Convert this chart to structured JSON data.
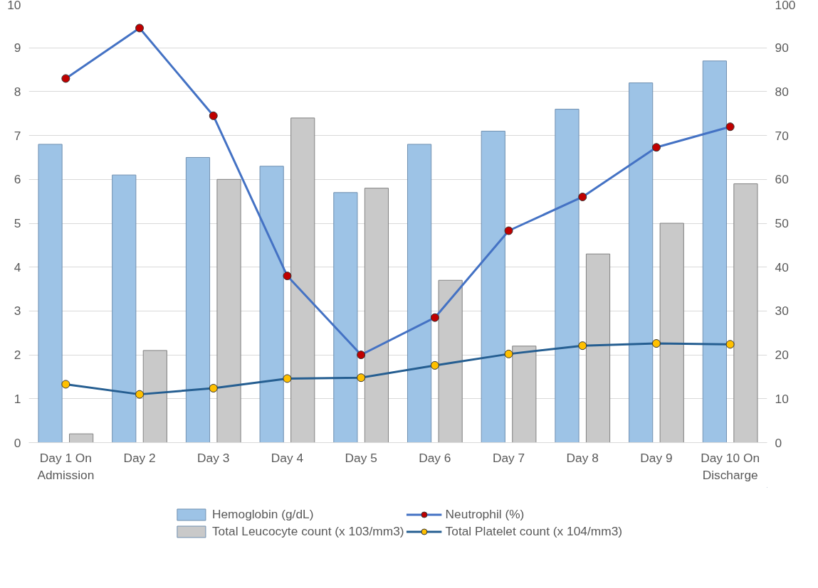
{
  "chart_data": {
    "type": "bar",
    "categories": [
      "Day 1 On Admission",
      "Day 2",
      "Day 3",
      "Day 4",
      "Day 5",
      "Day 6",
      "Day 7",
      "Day 8",
      "Day 9",
      "Day 10 On Discharge"
    ],
    "series": [
      {
        "name": "Hemoglobin (g/dL)",
        "color": "#9dc3e6",
        "values": [
          6.8,
          6.1,
          6.5,
          6.3,
          5.7,
          6.8,
          7.1,
          7.6,
          8.2,
          8.7
        ]
      },
      {
        "name": "Total Leucocyte count (x 103/mm3)",
        "color": "#c9c9c9",
        "values": [
          0.2,
          2.1,
          6.0,
          7.4,
          5.8,
          3.7,
          2.2,
          4.3,
          5.0,
          5.9
        ]
      },
      {
        "name": "Neutrophil (%)",
        "type": "line",
        "axis": "y2",
        "color": "#4472c4",
        "colors": [
          "#c00000",
          "#c00000",
          "#c00000",
          "#c00000",
          "#c00000",
          "#c00000",
          "#c00000",
          "#c00000",
          "#c00000",
          "#c00000"
        ],
        "marker": "circle",
        "values": [
          83,
          94.5,
          74.5,
          38,
          20,
          28.5,
          48.3,
          56,
          67.3,
          72
        ]
      },
      {
        "name": "Total Platelet count (x 104/mm3)",
        "type": "line",
        "color": "#255e91",
        "colors": [
          "#ffc000",
          "#ffc000",
          "#ffc000",
          "#ffc000",
          "#ffc000",
          "#ffc000",
          "#ffc000",
          "#ffc000",
          "#ffc000",
          "#ffc000"
        ],
        "marker": "circle",
        "values": [
          1.33,
          1.1,
          1.24,
          1.46,
          1.48,
          1.76,
          2.02,
          2.21,
          2.26,
          2.24
        ]
      }
    ],
    "ylim": [
      0,
      10
    ],
    "yticks": [
      0,
      1,
      2,
      3,
      4,
      5,
      6,
      7,
      8,
      9,
      10
    ],
    "y2lim": [
      0,
      100
    ],
    "y2ticks": [
      0,
      10,
      20,
      30,
      40,
      50,
      60,
      70,
      80,
      90,
      100
    ],
    "grid": "y",
    "legend": "bottom"
  }
}
